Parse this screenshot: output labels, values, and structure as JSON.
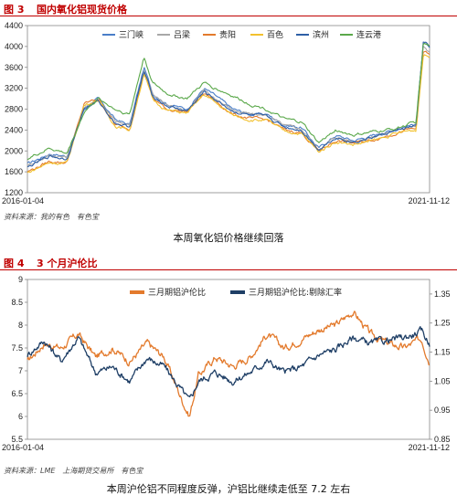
{
  "figure1": {
    "number": "图 3",
    "title": "国内氧化铝现货价格",
    "source": "资料来源：我的有色　有色宝",
    "caption": "本周氧化铝价格继续回落",
    "colors": {
      "三门峡": "#4a7ec8",
      "吕梁": "#a8a8a8",
      "贵阳": "#e37a2c",
      "百色": "#f2c12e",
      "滨州": "#2e5fa6",
      "连云港": "#5aa84a"
    }
  },
  "figure2": {
    "number": "图 4",
    "title": "3 个月沪伦比",
    "source": "资料来源：LME　上海期货交易所　有色宝",
    "caption": "本周沪伦铝不同程度反弹，沪铝比继续走低至 7.2 左右",
    "colors": {
      "三月期铝沪伦比": "#e37a2c",
      "三月期铝沪伦比:剔除汇率": "#1f3f66"
    }
  },
  "chart_data": [
    {
      "type": "line",
      "title": "国内氧化铝现货价格",
      "xlabel": "",
      "ylabel": "",
      "x_labels": [
        "2016-01-04",
        "2021-11-12"
      ],
      "x_range": [
        "2016-01-04",
        "2021-11-12"
      ],
      "y_ticks": [
        1200,
        1600,
        2000,
        2400,
        2800,
        3200,
        3600,
        4000,
        4400
      ],
      "ylim": [
        1200,
        4400
      ],
      "legend": "top",
      "grid": false,
      "series": [
        {
          "name": "三门峡",
          "color": "#4a7ec8",
          "points": [
            [
              "2016-01-04",
              1750
            ],
            [
              "2016-05-01",
              1950
            ],
            [
              "2016-08-01",
              1900
            ],
            [
              "2016-11-01",
              2800
            ],
            [
              "2017-01-15",
              3000
            ],
            [
              "2017-04-15",
              2600
            ],
            [
              "2017-07-01",
              2500
            ],
            [
              "2017-09-15",
              3600
            ],
            [
              "2017-11-01",
              3100
            ],
            [
              "2018-01-15",
              2900
            ],
            [
              "2018-05-01",
              2800
            ],
            [
              "2018-08-01",
              3200
            ],
            [
              "2018-10-01",
              3050
            ],
            [
              "2019-01-01",
              2800
            ],
            [
              "2019-04-01",
              2700
            ],
            [
              "2019-07-01",
              2700
            ],
            [
              "2019-10-01",
              2500
            ],
            [
              "2020-01-01",
              2450
            ],
            [
              "2020-04-01",
              2050
            ],
            [
              "2020-07-01",
              2300
            ],
            [
              "2020-10-01",
              2200
            ],
            [
              "2021-01-01",
              2280
            ],
            [
              "2021-05-01",
              2400
            ],
            [
              "2021-07-15",
              2480
            ],
            [
              "2021-09-01",
              2500
            ],
            [
              "2021-10-10",
              4050
            ],
            [
              "2021-11-12",
              3950
            ]
          ]
        },
        {
          "name": "吕梁",
          "color": "#a8a8a8",
          "points": [
            [
              "2016-01-04",
              1720
            ],
            [
              "2016-05-01",
              1920
            ],
            [
              "2016-08-01",
              1880
            ],
            [
              "2016-11-01",
              2850
            ],
            [
              "2017-01-15",
              2980
            ],
            [
              "2017-04-15",
              2560
            ],
            [
              "2017-07-01",
              2480
            ],
            [
              "2017-09-15",
              3550
            ],
            [
              "2017-11-01",
              3080
            ],
            [
              "2018-01-15",
              2880
            ],
            [
              "2018-05-01",
              2780
            ],
            [
              "2018-08-01",
              3150
            ],
            [
              "2018-10-01",
              3000
            ],
            [
              "2019-01-01",
              2780
            ],
            [
              "2019-04-01",
              2700
            ],
            [
              "2019-07-01",
              2680
            ],
            [
              "2019-10-01",
              2480
            ],
            [
              "2020-01-01",
              2420
            ],
            [
              "2020-04-01",
              2020
            ],
            [
              "2020-07-01",
              2270
            ],
            [
              "2020-10-01",
              2180
            ],
            [
              "2021-01-01",
              2260
            ],
            [
              "2021-05-01",
              2380
            ],
            [
              "2021-07-15",
              2460
            ],
            [
              "2021-09-01",
              2480
            ],
            [
              "2021-10-10",
              4000
            ],
            [
              "2021-11-12",
              3900
            ]
          ]
        },
        {
          "name": "贵阳",
          "color": "#e37a2c",
          "points": [
            [
              "2016-01-04",
              1600
            ],
            [
              "2016-05-01",
              1800
            ],
            [
              "2016-08-01",
              1780
            ],
            [
              "2016-11-01",
              2900
            ],
            [
              "2017-01-15",
              3000
            ],
            [
              "2017-04-15",
              2500
            ],
            [
              "2017-07-01",
              2420
            ],
            [
              "2017-09-15",
              3500
            ],
            [
              "2017-11-01",
              3000
            ],
            [
              "2018-01-15",
              2800
            ],
            [
              "2018-05-01",
              2750
            ],
            [
              "2018-08-01",
              3100
            ],
            [
              "2018-10-01",
              2950
            ],
            [
              "2019-01-01",
              2700
            ],
            [
              "2019-04-01",
              2620
            ],
            [
              "2019-07-01",
              2600
            ],
            [
              "2019-10-01",
              2400
            ],
            [
              "2020-01-01",
              2350
            ],
            [
              "2020-04-01",
              2000
            ],
            [
              "2020-07-01",
              2200
            ],
            [
              "2020-10-01",
              2150
            ],
            [
              "2021-01-01",
              2200
            ],
            [
              "2021-05-01",
              2330
            ],
            [
              "2021-07-15",
              2400
            ],
            [
              "2021-09-01",
              2420
            ],
            [
              "2021-10-10",
              3900
            ],
            [
              "2021-11-12",
              3850
            ]
          ]
        },
        {
          "name": "百色",
          "color": "#f2c12e",
          "points": [
            [
              "2016-01-04",
              1580
            ],
            [
              "2016-05-01",
              1780
            ],
            [
              "2016-08-01",
              1760
            ],
            [
              "2016-11-01",
              2880
            ],
            [
              "2017-01-15",
              2980
            ],
            [
              "2017-04-15",
              2480
            ],
            [
              "2017-07-01",
              2400
            ],
            [
              "2017-09-15",
              3480
            ],
            [
              "2017-11-01",
              2980
            ],
            [
              "2018-01-15",
              2780
            ],
            [
              "2018-05-01",
              2720
            ],
            [
              "2018-08-01",
              3080
            ],
            [
              "2018-10-01",
              2920
            ],
            [
              "2019-01-01",
              2680
            ],
            [
              "2019-04-01",
              2600
            ],
            [
              "2019-07-01",
              2580
            ],
            [
              "2019-10-01",
              2380
            ],
            [
              "2020-01-01",
              2330
            ],
            [
              "2020-04-01",
              1980
            ],
            [
              "2020-07-01",
              2180
            ],
            [
              "2020-10-01",
              2120
            ],
            [
              "2021-01-01",
              2180
            ],
            [
              "2021-05-01",
              2310
            ],
            [
              "2021-07-15",
              2380
            ],
            [
              "2021-09-01",
              2400
            ],
            [
              "2021-10-10",
              3850
            ],
            [
              "2021-11-12",
              3800
            ]
          ]
        },
        {
          "name": "滨州",
          "color": "#2e5fa6",
          "points": [
            [
              "2016-01-04",
              1680
            ],
            [
              "2016-05-01",
              1900
            ],
            [
              "2016-08-01",
              1850
            ],
            [
              "2016-11-01",
              2820
            ],
            [
              "2017-01-15",
              2950
            ],
            [
              "2017-04-15",
              2540
            ],
            [
              "2017-07-01",
              2460
            ],
            [
              "2017-09-15",
              3520
            ],
            [
              "2017-11-01",
              3050
            ],
            [
              "2018-01-15",
              2860
            ],
            [
              "2018-05-01",
              2760
            ],
            [
              "2018-08-01",
              3130
            ],
            [
              "2018-10-01",
              2980
            ],
            [
              "2019-01-01",
              2760
            ],
            [
              "2019-04-01",
              2680
            ],
            [
              "2019-07-01",
              2650
            ],
            [
              "2019-10-01",
              2460
            ],
            [
              "2020-01-01",
              2400
            ],
            [
              "2020-04-01",
              2030
            ],
            [
              "2020-07-01",
              2260
            ],
            [
              "2020-10-01",
              2170
            ],
            [
              "2021-01-01",
              2250
            ],
            [
              "2021-05-01",
              2370
            ],
            [
              "2021-07-15",
              2450
            ],
            [
              "2021-09-01",
              2470
            ],
            [
              "2021-10-10",
              4100
            ],
            [
              "2021-11-12",
              4000
            ]
          ]
        },
        {
          "name": "连云港",
          "color": "#5aa84a",
          "points": [
            [
              "2016-01-04",
              1850
            ],
            [
              "2016-05-01",
              2050
            ],
            [
              "2016-08-01",
              1950
            ],
            [
              "2016-11-01",
              2750
            ],
            [
              "2017-01-15",
              3000
            ],
            [
              "2017-04-15",
              2800
            ],
            [
              "2017-07-01",
              2700
            ],
            [
              "2017-09-15",
              3800
            ],
            [
              "2017-11-01",
              3300
            ],
            [
              "2018-01-15",
              3100
            ],
            [
              "2018-05-01",
              3000
            ],
            [
              "2018-08-01",
              3300
            ],
            [
              "2018-10-01",
              3200
            ],
            [
              "2019-01-01",
              3050
            ],
            [
              "2019-04-01",
              2900
            ],
            [
              "2019-07-01",
              2800
            ],
            [
              "2019-10-01",
              2600
            ],
            [
              "2020-01-01",
              2550
            ],
            [
              "2020-04-01",
              2150
            ],
            [
              "2020-07-01",
              2400
            ],
            [
              "2020-10-01",
              2300
            ],
            [
              "2021-01-01",
              2350
            ],
            [
              "2021-05-01",
              2420
            ],
            [
              "2021-07-15",
              2500
            ],
            [
              "2021-09-01",
              2550
            ],
            [
              "2021-10-10",
              4050
            ],
            [
              "2021-11-12",
              4000
            ]
          ]
        }
      ]
    },
    {
      "type": "line",
      "title": "3 个月沪伦比",
      "xlabel": "",
      "ylabel": "",
      "x_labels": [
        "2016-01-04",
        "2021-11-12"
      ],
      "x_range": [
        "2016-01-04",
        "2021-11-12"
      ],
      "y_left_ticks": [
        5.5,
        6,
        6.5,
        7,
        7.5,
        8,
        8.5,
        9
      ],
      "y_left_range": [
        5.5,
        9
      ],
      "y_right_ticks": [
        0.85,
        0.95,
        1.05,
        1.15,
        1.25,
        1.35
      ],
      "y_right_range": [
        0.85,
        1.4
      ],
      "legend": "top",
      "grid": false,
      "series": [
        {
          "name": "三月期铝沪伦比",
          "axis": "left",
          "color": "#e37a2c",
          "points": [
            [
              "2016-01-04",
              7.2
            ],
            [
              "2016-04-01",
              7.6
            ],
            [
              "2016-07-01",
              7.5
            ],
            [
              "2016-10-01",
              7.8
            ],
            [
              "2017-01-01",
              7.3
            ],
            [
              "2017-04-01",
              7.5
            ],
            [
              "2017-07-01",
              7.2
            ],
            [
              "2017-10-01",
              7.6
            ],
            [
              "2018-01-01",
              7.3
            ],
            [
              "2018-04-01",
              6.4
            ],
            [
              "2018-05-15",
              6.0
            ],
            [
              "2018-07-01",
              6.9
            ],
            [
              "2018-10-01",
              7.3
            ],
            [
              "2019-01-01",
              7.1
            ],
            [
              "2019-04-01",
              7.3
            ],
            [
              "2019-07-01",
              7.8
            ],
            [
              "2019-10-01",
              7.5
            ],
            [
              "2020-01-01",
              7.7
            ],
            [
              "2020-04-01",
              7.9
            ],
            [
              "2020-07-01",
              8.0
            ],
            [
              "2020-10-01",
              8.3
            ],
            [
              "2021-01-01",
              7.8
            ],
            [
              "2021-04-01",
              7.6
            ],
            [
              "2021-07-01",
              7.5
            ],
            [
              "2021-10-01",
              7.7
            ],
            [
              "2021-11-12",
              7.2
            ]
          ]
        },
        {
          "name": "三月期铝沪伦比:剔除汇率",
          "axis": "right",
          "color": "#1f3f66",
          "points": [
            [
              "2016-01-04",
              1.14
            ],
            [
              "2016-04-01",
              1.19
            ],
            [
              "2016-07-01",
              1.12
            ],
            [
              "2016-10-01",
              1.2
            ],
            [
              "2017-01-01",
              1.08
            ],
            [
              "2017-04-01",
              1.1
            ],
            [
              "2017-07-01",
              1.05
            ],
            [
              "2017-10-01",
              1.13
            ],
            [
              "2018-01-01",
              1.1
            ],
            [
              "2018-04-01",
              1.02
            ],
            [
              "2018-05-15",
              0.98
            ],
            [
              "2018-07-01",
              1.05
            ],
            [
              "2018-10-01",
              1.08
            ],
            [
              "2019-01-01",
              1.05
            ],
            [
              "2019-04-01",
              1.08
            ],
            [
              "2019-07-01",
              1.12
            ],
            [
              "2019-10-01",
              1.08
            ],
            [
              "2020-01-01",
              1.1
            ],
            [
              "2020-04-01",
              1.14
            ],
            [
              "2020-07-01",
              1.16
            ],
            [
              "2020-10-01",
              1.2
            ],
            [
              "2021-01-01",
              1.18
            ],
            [
              "2021-04-01",
              1.19
            ],
            [
              "2021-07-01",
              1.2
            ],
            [
              "2021-10-01",
              1.22
            ],
            [
              "2021-11-12",
              1.18
            ]
          ]
        }
      ]
    }
  ]
}
